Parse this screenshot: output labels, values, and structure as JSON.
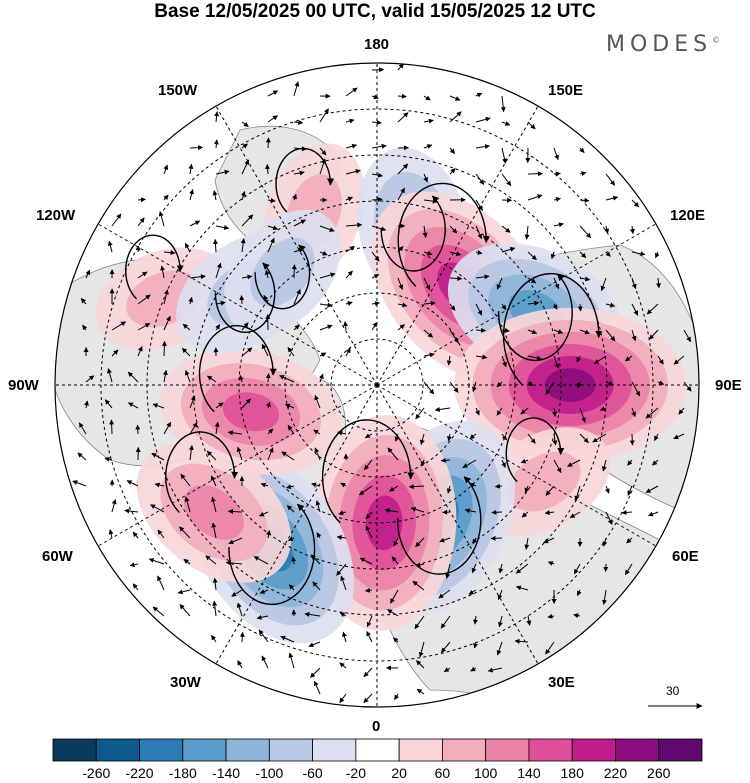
{
  "title": "Base 12/05/2025 00 UTC, valid 15/05/2025 12 UTC",
  "brand": "MODES",
  "brand_mark": "©",
  "longitude_labels": {
    "lon_180": "180",
    "lon_150w": "150W",
    "lon_150e": "150E",
    "lon_120w": "120W",
    "lon_120e": "120E",
    "lon_90w": "90W",
    "lon_90e": "90E",
    "lon_60w": "60W",
    "lon_60e": "60E",
    "lon_30w": "30W",
    "lon_30e": "30E",
    "lon_0": "0"
  },
  "reference_vector": "30",
  "colorbar": {
    "labels": [
      "-260",
      "-220",
      "-180",
      "-140",
      "-100",
      "-60",
      "-20",
      "20",
      "60",
      "100",
      "140",
      "180",
      "220",
      "260"
    ],
    "colors": [
      "#0a3a5c",
      "#0e5a8c",
      "#2b7bb5",
      "#5a9ccb",
      "#8fb5d9",
      "#b7c7e4",
      "#dcdff0",
      "#ffffff",
      "#f9d7d9",
      "#f2aebd",
      "#ec84a8",
      "#e0509a",
      "#c01e8c",
      "#8c0e7c",
      "#5e0a6e"
    ]
  },
  "anomaly_centers": [
    {
      "lon": -160,
      "lat": 50,
      "value": 60
    },
    {
      "lon": 167,
      "lat": 55,
      "value": -100
    },
    {
      "lon": 140,
      "lat": 62,
      "value": 200
    },
    {
      "lon": 115,
      "lat": 52,
      "value": -140
    },
    {
      "lon": 90,
      "lat": 48,
      "value": 230
    },
    {
      "lon": 60,
      "lat": 48,
      "value": 60
    },
    {
      "lon": 25,
      "lat": 58,
      "value": -180
    },
    {
      "lon": 3,
      "lat": 60,
      "value": 200
    },
    {
      "lon": -33,
      "lat": 48,
      "value": -190
    },
    {
      "lon": -52,
      "lat": 45,
      "value": 120
    },
    {
      "lon": -78,
      "lat": 62,
      "value": 140
    },
    {
      "lon": -112,
      "lat": 40,
      "value": 60
    },
    {
      "lon": -125,
      "lat": 55,
      "value": -80
    },
    {
      "lon": -140,
      "lat": 58,
      "value": -60
    }
  ]
}
